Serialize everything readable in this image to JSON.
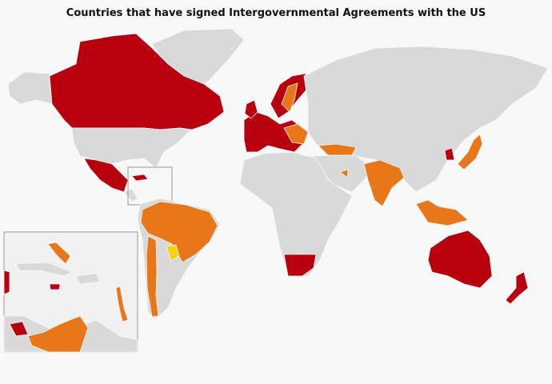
{
  "title": "Countries that have signed Intergovernmental Agreements with the US"
}
